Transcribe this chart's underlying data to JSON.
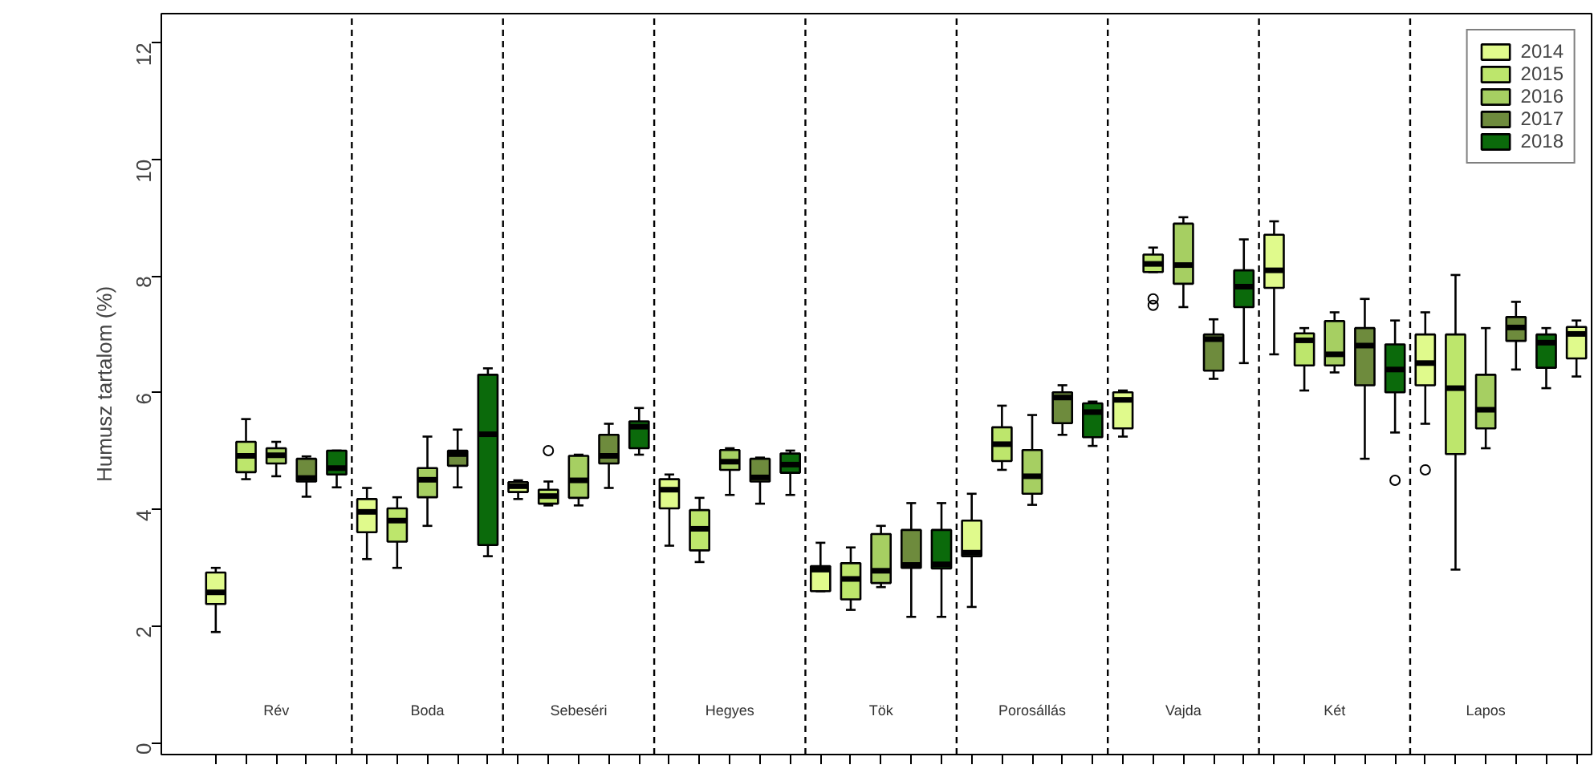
{
  "chart_data": {
    "type": "box",
    "ylabel": "Humusz tartalom (%)",
    "categories": [
      "Rév",
      "Boda",
      "Sebeséri",
      "Hegyes",
      "Tök",
      "Porosállás",
      "Vajda",
      "Két",
      "Lapos",
      null
    ],
    "ylim": [
      -0.2,
      12.5
    ],
    "yticks": [
      0,
      2,
      4,
      6,
      8,
      10,
      12
    ],
    "tick_labels": "y",
    "grid": false,
    "legend": "top right",
    "series": [
      {
        "name": "2014",
        "color": "#e0fa8c",
        "boxes": [
          {
            "low": 1.9,
            "q1": 2.38,
            "median": 2.58,
            "q3": 2.92,
            "high": 3.0
          },
          {
            "low": 3.15,
            "q1": 3.61,
            "median": 3.96,
            "q3": 4.18,
            "high": 4.37
          },
          {
            "low": 4.18,
            "q1": 4.3,
            "median": 4.4,
            "q3": 4.47,
            "high": 4.5
          },
          {
            "low": 3.38,
            "q1": 4.02,
            "median": 4.34,
            "q3": 4.52,
            "high": 4.6
          },
          {
            "low": 2.6,
            "q1": 2.6,
            "median": 2.97,
            "q3": 3.03,
            "high": 3.43
          },
          {
            "low": 2.33,
            "q1": 3.2,
            "median": 3.26,
            "q3": 3.81,
            "high": 4.27
          },
          {
            "low": 5.25,
            "q1": 5.39,
            "median": 5.88,
            "q3": 6.01,
            "high": 6.04
          },
          {
            "low": 6.66,
            "q1": 7.8,
            "median": 8.1,
            "q3": 8.71,
            "high": 8.94
          },
          {
            "low": 5.47,
            "q1": 6.13,
            "median": 6.51,
            "q3": 7.0,
            "high": 7.38,
            "outliers": [
              4.68
            ]
          },
          {
            "low": 6.28,
            "q1": 6.59,
            "median": 7.01,
            "q3": 7.13,
            "high": 7.24
          }
        ]
      },
      {
        "name": "2015",
        "color": "#bde66c",
        "boxes": [
          {
            "low": 4.52,
            "q1": 4.64,
            "median": 4.92,
            "q3": 5.16,
            "high": 5.55
          },
          {
            "low": 3.0,
            "q1": 3.45,
            "median": 3.81,
            "q3": 4.02,
            "high": 4.21
          },
          {
            "low": 4.07,
            "q1": 4.1,
            "median": 4.23,
            "q3": 4.34,
            "high": 4.48,
            "outliers": [
              5.01
            ]
          },
          {
            "low": 3.1,
            "q1": 3.3,
            "median": 3.67,
            "q3": 3.99,
            "high": 4.2
          },
          {
            "low": 2.28,
            "q1": 2.46,
            "median": 2.81,
            "q3": 3.08,
            "high": 3.35
          },
          {
            "low": 4.68,
            "q1": 4.83,
            "median": 5.12,
            "q3": 5.41,
            "high": 5.78
          },
          {
            "low": 8.07,
            "q1": 8.07,
            "median": 8.21,
            "q3": 8.37,
            "high": 8.49,
            "outliers": [
              7.61,
              7.5
            ]
          },
          {
            "low": 6.04,
            "q1": 6.47,
            "median": 6.9,
            "q3": 7.02,
            "high": 7.11
          },
          {
            "low": 2.97,
            "q1": 4.95,
            "median": 6.08,
            "q3": 7.0,
            "high": 8.02
          },
          null
        ]
      },
      {
        "name": "2016",
        "color": "#a6cf62",
        "boxes": [
          {
            "low": 4.57,
            "q1": 4.79,
            "median": 4.93,
            "q3": 5.05,
            "high": 5.16
          },
          {
            "low": 3.72,
            "q1": 4.21,
            "median": 4.51,
            "q3": 4.71,
            "high": 5.25
          },
          {
            "low": 4.07,
            "q1": 4.2,
            "median": 4.5,
            "q3": 4.92,
            "high": 4.94
          },
          {
            "low": 4.25,
            "q1": 4.68,
            "median": 4.82,
            "q3": 5.02,
            "high": 5.05
          },
          {
            "low": 2.67,
            "q1": 2.74,
            "median": 2.95,
            "q3": 3.58,
            "high": 3.72
          },
          {
            "low": 4.08,
            "q1": 4.27,
            "median": 4.57,
            "q3": 5.02,
            "high": 5.62
          },
          {
            "low": 7.47,
            "q1": 7.87,
            "median": 8.19,
            "q3": 8.9,
            "high": 9.01
          },
          {
            "low": 6.35,
            "q1": 6.47,
            "median": 6.66,
            "q3": 7.23,
            "high": 7.38
          },
          {
            "low": 5.05,
            "q1": 5.39,
            "median": 5.71,
            "q3": 6.31,
            "high": 7.11
          },
          null
        ]
      },
      {
        "name": "2017",
        "color": "#6e8b3d",
        "boxes": [
          {
            "low": 4.22,
            "q1": 4.48,
            "median": 4.54,
            "q3": 4.87,
            "high": 4.91
          },
          {
            "low": 4.38,
            "q1": 4.75,
            "median": 4.95,
            "q3": 5.01,
            "high": 5.37
          },
          {
            "low": 4.37,
            "q1": 4.79,
            "median": 4.92,
            "q3": 5.28,
            "high": 5.47
          },
          {
            "low": 4.1,
            "q1": 4.48,
            "median": 4.55,
            "q3": 4.87,
            "high": 4.89
          },
          {
            "low": 2.16,
            "q1": 3.0,
            "median": 3.05,
            "q3": 3.65,
            "high": 4.11
          },
          {
            "low": 5.28,
            "q1": 5.48,
            "median": 5.92,
            "q3": 6.01,
            "high": 6.13
          },
          {
            "low": 6.24,
            "q1": 6.38,
            "median": 6.92,
            "q3": 7.0,
            "high": 7.26
          },
          {
            "low": 4.87,
            "q1": 6.13,
            "median": 6.81,
            "q3": 7.11,
            "high": 7.61
          },
          {
            "low": 6.4,
            "q1": 6.89,
            "median": 7.12,
            "q3": 7.3,
            "high": 7.56
          },
          null
        ]
      },
      {
        "name": "2018",
        "color": "#0b6a0b",
        "boxes": [
          {
            "low": 4.38,
            "q1": 4.6,
            "median": 4.71,
            "q3": 5.01,
            "high": 5.01
          },
          {
            "low": 3.2,
            "q1": 3.39,
            "median": 5.29,
            "q3": 6.31,
            "high": 6.42
          },
          {
            "low": 4.94,
            "q1": 5.05,
            "median": 5.42,
            "q3": 5.51,
            "high": 5.74
          },
          {
            "low": 4.25,
            "q1": 4.63,
            "median": 4.77,
            "q3": 4.96,
            "high": 5.01
          },
          {
            "low": 2.16,
            "q1": 2.99,
            "median": 3.06,
            "q3": 3.65,
            "high": 4.11
          },
          {
            "low": 5.09,
            "q1": 5.24,
            "median": 5.67,
            "q3": 5.82,
            "high": 5.85
          },
          {
            "low": 6.51,
            "q1": 7.47,
            "median": 7.82,
            "q3": 8.1,
            "high": 8.63
          },
          {
            "low": 5.32,
            "q1": 6.01,
            "median": 6.4,
            "q3": 6.83,
            "high": 7.24,
            "outliers": [
              4.5
            ]
          },
          {
            "low": 6.08,
            "q1": 6.43,
            "median": 6.86,
            "q3": 7.0,
            "high": 7.11
          },
          null
        ]
      }
    ]
  }
}
